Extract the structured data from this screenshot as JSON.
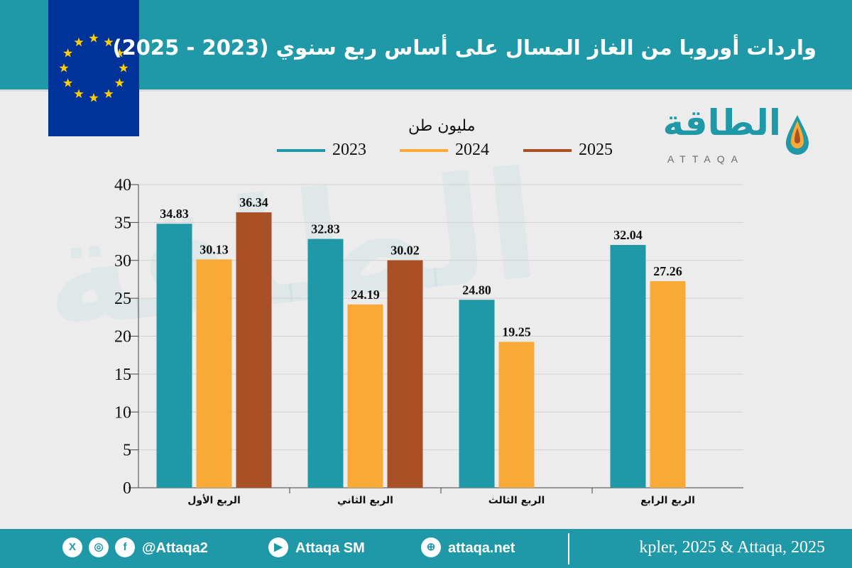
{
  "header": {
    "title": "واردات أوروبا من الغاز المسال على أساس ربع سنوي (2023 - 2025)"
  },
  "logo": {
    "text": "الطاقة",
    "subtext": "ATTAQA"
  },
  "watermark": "الطاقة",
  "footer": {
    "twitter_icon": "x-icon",
    "instagram_icon": "instagram-icon",
    "facebook_icon": "facebook-icon",
    "handle": "@Attaqa2",
    "youtube_icon": "youtube-icon",
    "youtube": "Attaqa SM",
    "web_icon": "globe-icon",
    "website": "attaqa.net",
    "source": "kpler, 2025 & Attaqa, 2025"
  },
  "chart_data": {
    "type": "bar",
    "unit_label": "مليون طن",
    "categories": [
      "الربع الأول",
      "الربع الثاني",
      "الربع الثالث",
      "الربع الرابع"
    ],
    "series": [
      {
        "name": "2023",
        "color": "#1f98a8",
        "values": [
          34.83,
          32.83,
          24.8,
          32.04
        ],
        "labels": [
          "34.83",
          "32.83",
          "24.80",
          "32.04"
        ]
      },
      {
        "name": "2024",
        "color": "#f9a936",
        "values": [
          30.13,
          24.19,
          19.25,
          27.26
        ],
        "labels": [
          "30.13",
          "24.19",
          "19.25",
          "27.26"
        ]
      },
      {
        "name": "2025",
        "color": "#a95125",
        "values": [
          36.34,
          30.02,
          null,
          null
        ],
        "labels": [
          "36.34",
          "30.02",
          "",
          ""
        ]
      }
    ],
    "yticks": [
      "0",
      "5",
      "10",
      "15",
      "20",
      "25",
      "30",
      "35",
      "40"
    ],
    "ylim": [
      0,
      40
    ],
    "grid": true,
    "legend": "top"
  }
}
